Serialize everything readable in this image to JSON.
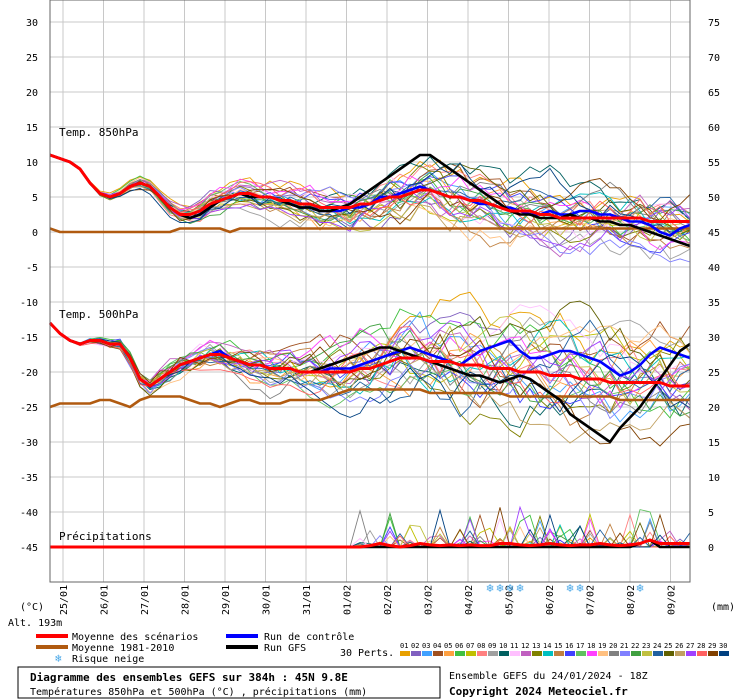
{
  "chart_data": {
    "type": "line",
    "title": "Diagramme des ensembles GEFS sur 384h : 45N 9.8E",
    "subtitle": "Températures 850hPa et 500hPa (°C) , précipitations (mm)",
    "run_info": "Ensemble GEFS du 24/01/2024 - 18Z",
    "copyright": "Copyright 2024 Meteociel.fr",
    "left_axis_unit": "(°C)",
    "right_axis_unit": "(mm)",
    "altitude": "Alt. 193m",
    "yleft_ticks": [
      "30",
      "25",
      "20",
      "15",
      "10",
      "5",
      "0",
      "-5",
      "-10",
      "-15",
      "-20",
      "-25",
      "-30",
      "-35",
      "-40",
      "-45"
    ],
    "yright_ticks": [
      "75",
      "70",
      "65",
      "60",
      "55",
      "50",
      "45",
      "40",
      "35",
      "30",
      "25",
      "20",
      "15",
      "10",
      "5",
      "0"
    ],
    "x_ticks": [
      "25/01",
      "26/01",
      "27/01",
      "28/01",
      "29/01",
      "30/01",
      "31/01",
      "01/02",
      "02/02",
      "03/02",
      "04/02",
      "05/02",
      "06/02",
      "07/02",
      "08/02",
      "09/02"
    ],
    "section_labels": {
      "t850": "Temp. 850hPa",
      "t500": "Temp. 500hPa",
      "precip": "Précipitations"
    },
    "x_steps": 64,
    "series": [
      {
        "name": "Moyenne des scénarios",
        "color": "#ff0000",
        "t850": [
          11,
          10.5,
          10,
          9,
          7,
          5.5,
          5,
          5.5,
          6.5,
          7,
          6.5,
          5,
          3.5,
          2.5,
          2.5,
          3,
          4,
          4.5,
          5,
          5.5,
          5.5,
          5,
          5,
          4.5,
          4.5,
          4,
          4,
          3.5,
          3.5,
          3.5,
          3.5,
          4,
          4,
          4.5,
          5,
          5,
          5.5,
          6,
          6,
          5.5,
          5,
          5,
          4.5,
          4.5,
          4,
          3.5,
          3,
          3,
          3,
          2.5,
          2.5,
          2,
          2,
          2,
          2,
          2,
          2,
          2,
          2,
          2,
          1.5,
          1.5,
          1.5,
          1.5,
          1.5
        ],
        "t500": [
          -13,
          -14.5,
          -15.5,
          -16,
          -15.5,
          -15.5,
          -16,
          -16,
          -18,
          -21,
          -22,
          -21,
          -20,
          -19,
          -18.5,
          -18,
          -17.5,
          -17.5,
          -18,
          -18.5,
          -19,
          -19,
          -19.5,
          -19.5,
          -19.5,
          -20,
          -20,
          -20,
          -20,
          -20,
          -20,
          -19.5,
          -19.5,
          -19,
          -18.5,
          -18,
          -18,
          -18,
          -18.5,
          -18.5,
          -18.5,
          -19,
          -19,
          -19,
          -19.5,
          -19.5,
          -19.5,
          -20,
          -20,
          -20,
          -20.5,
          -20.5,
          -20.5,
          -21,
          -21,
          -21,
          -21.5,
          -21.5,
          -21.5,
          -21.5,
          -21.5,
          -21.5,
          -22,
          -22,
          -22
        ],
        "precip": [
          0,
          0,
          0,
          0,
          0,
          0,
          0,
          0,
          0,
          0,
          0,
          0,
          0,
          0,
          0,
          0,
          0,
          0,
          0,
          0,
          0,
          0,
          0,
          0,
          0,
          0,
          0,
          0,
          0,
          0,
          0,
          0,
          0.2,
          0.5,
          0.2,
          0,
          0.2,
          0.5,
          0.3,
          0.2,
          0.3,
          0.2,
          0.3,
          0.2,
          0.2,
          0.5,
          0.5,
          0.3,
          0.2,
          0.3,
          0.5,
          0.3,
          0.2,
          0.3,
          0.3,
          0.5,
          0.3,
          0.2,
          0.3,
          0.5,
          1,
          0.5,
          0.5,
          0.5,
          0.5
        ]
      },
      {
        "name": "Moyenne 1981-2010",
        "color": "#b05a10",
        "t850": [
          0.5,
          0,
          0,
          0,
          0,
          0,
          0,
          0,
          0,
          0,
          0,
          0,
          0,
          0.5,
          0.5,
          0.5,
          0.5,
          0.5,
          0,
          0.5,
          0.5,
          0.5,
          0.5,
          0.5,
          0.5,
          0.5,
          0.5,
          0.5,
          0.5,
          0.5,
          0.5,
          0.5,
          0.5,
          0.5,
          0.5,
          0.5,
          0.5,
          0.5,
          0.5,
          0.5,
          0.5,
          0.5,
          0.5,
          0.5,
          0.5,
          0.5,
          0.5,
          0.5,
          0.5,
          0.5,
          0.5,
          0.5,
          0.5,
          0.5,
          0.5,
          0.5,
          0.5,
          0.5,
          0.5,
          0.5,
          0.5,
          0.5,
          0.5,
          0.5,
          0.5
        ],
        "t500": [
          -25,
          -24.5,
          -24.5,
          -24.5,
          -24.5,
          -24,
          -24,
          -24.5,
          -25,
          -24,
          -23.5,
          -23.5,
          -23.5,
          -23.5,
          -24,
          -24.5,
          -24.5,
          -25,
          -24.5,
          -24,
          -24,
          -24.5,
          -24.5,
          -24.5,
          -24,
          -24,
          -24,
          -24,
          -23.5,
          -23,
          -22.5,
          -22.5,
          -22.5,
          -22.5,
          -22.5,
          -22.5,
          -22.5,
          -22.5,
          -23,
          -23,
          -23,
          -23,
          -23,
          -23,
          -23,
          -23,
          -23.5,
          -23.5,
          -23.5,
          -23.5,
          -23.5,
          -23.5,
          -23.5,
          -23.5,
          -23.5,
          -23.5,
          -23.5,
          -24,
          -24,
          -24,
          -24,
          -24,
          -24,
          -24,
          -24
        ]
      },
      {
        "name": "Run de contrôle",
        "color": "#0000ff",
        "t850": [
          11,
          10.5,
          10,
          9,
          7,
          5.5,
          5,
          5.5,
          6.5,
          7,
          6.5,
          5,
          3.5,
          2.5,
          2,
          2.5,
          3.5,
          4.5,
          5,
          5.5,
          5,
          5,
          5,
          4.5,
          4,
          3.5,
          3.5,
          3,
          3,
          3,
          3.5,
          3.5,
          4,
          5,
          5,
          5.5,
          6,
          6.5,
          6,
          5.5,
          5,
          5,
          4.5,
          4,
          4,
          3.5,
          3.5,
          3,
          2.5,
          2.5,
          3,
          2.5,
          2.5,
          3,
          3,
          2.5,
          2.5,
          2,
          1.5,
          1.5,
          1,
          0,
          -0.5,
          0.5,
          1
        ],
        "t500": [
          -13,
          -14.5,
          -15.5,
          -16,
          -15.5,
          -15.5,
          -16,
          -16,
          -18,
          -21,
          -22,
          -21,
          -20,
          -19,
          -18.5,
          -18,
          -17.5,
          -17,
          -18,
          -18.5,
          -19,
          -19,
          -19.5,
          -19.5,
          -19.5,
          -20,
          -20,
          -20,
          -19.5,
          -19.5,
          -19.5,
          -19,
          -18.5,
          -18,
          -17.5,
          -17,
          -16.5,
          -17,
          -17.5,
          -18,
          -18.5,
          -19,
          -18,
          -17,
          -16.5,
          -16,
          -15.5,
          -17,
          -18,
          -18,
          -17.5,
          -17,
          -17,
          -17.5,
          -18,
          -18.5,
          -19.5,
          -20.5,
          -20,
          -19,
          -17.5,
          -16.5,
          -17,
          -17.5,
          -18
        ]
      },
      {
        "name": "Run GFS",
        "color": "#000000",
        "t850": [
          11,
          10.5,
          10,
          9,
          7,
          5.5,
          5,
          5.5,
          6.5,
          7,
          6.5,
          5,
          3.5,
          2.5,
          2,
          2.5,
          3.5,
          4.5,
          5,
          5.5,
          5,
          5,
          5,
          4.5,
          4,
          3.5,
          3.5,
          3,
          3,
          3.5,
          4,
          5,
          6,
          7,
          8,
          9,
          10,
          11,
          11,
          10,
          9,
          8,
          7,
          6,
          5,
          4,
          3,
          2.5,
          2.5,
          2,
          2,
          2,
          2.5,
          2,
          2,
          1.5,
          1.5,
          1,
          1,
          0.5,
          0,
          -0.5,
          -1,
          -1.5,
          -2
        ],
        "t500": [
          -13,
          -14.5,
          -15.5,
          -16,
          -15.5,
          -15.5,
          -16,
          -16,
          -18,
          -21,
          -22,
          -21,
          -20,
          -19,
          -18.5,
          -18,
          -17.5,
          -17.5,
          -18,
          -18.5,
          -19,
          -19,
          -19.5,
          -19.5,
          -19.5,
          -20,
          -20,
          -19.5,
          -19,
          -18.5,
          -18,
          -17.5,
          -17,
          -16.5,
          -16.5,
          -17,
          -17.5,
          -18,
          -18.5,
          -19,
          -19.5,
          -20,
          -20.5,
          -20.5,
          -21,
          -21.5,
          -21,
          -20.5,
          -21,
          -22,
          -23,
          -24,
          -26,
          -27,
          -28,
          -29,
          -30,
          -28,
          -26.5,
          -25,
          -23,
          -21,
          -19,
          -17,
          -16
        ],
        "precip": [
          0,
          0,
          0,
          0,
          0,
          0,
          0,
          0,
          0,
          0,
          0,
          0,
          0,
          0,
          0,
          0,
          0,
          0,
          0,
          0,
          0,
          0,
          0,
          0,
          0,
          0,
          0,
          0,
          0,
          0,
          0,
          0,
          0,
          0,
          0,
          0,
          0,
          0,
          0,
          0,
          0,
          0,
          0,
          0,
          0,
          0,
          0,
          0,
          0,
          0,
          0,
          0,
          0,
          0,
          0,
          0,
          0,
          0,
          0,
          0.5,
          1,
          0,
          0,
          0,
          0
        ]
      }
    ],
    "perturbations": {
      "label": "30 Perts.",
      "labels": [
        "01",
        "02",
        "03",
        "04",
        "05",
        "06",
        "07",
        "08",
        "09",
        "10",
        "11",
        "12",
        "13",
        "14",
        "15",
        "16",
        "17",
        "18",
        "19",
        "20",
        "21",
        "22",
        "23",
        "24",
        "25",
        "26",
        "27",
        "28",
        "29",
        "30"
      ],
      "colors": [
        "#e8a000",
        "#8060c0",
        "#40a0ff",
        "#a05020",
        "#ffa040",
        "#40c040",
        "#c0c000",
        "#ff8080",
        "#a0a0a0",
        "#006060",
        "#ffc0ff",
        "#c060c0",
        "#808000",
        "#00c0c0",
        "#c08040",
        "#4040ff",
        "#60c060",
        "#ff40ff",
        "#ffc080",
        "#808080",
        "#8080ff",
        "#40a040",
        "#c0c040",
        "#2060a0",
        "#606000",
        "#c0a060",
        "#a040ff",
        "#ff6060",
        "#804000",
        "#004080"
      ]
    },
    "legend": {
      "mean": "Moyenne des scénarios",
      "clim": "Moyenne 1981-2010",
      "snow": "Risque neige",
      "control": "Run de contrôle",
      "gfs": "Run GFS"
    },
    "snow_risk_steps": [
      44,
      45,
      46,
      47,
      52,
      53,
      59
    ]
  }
}
